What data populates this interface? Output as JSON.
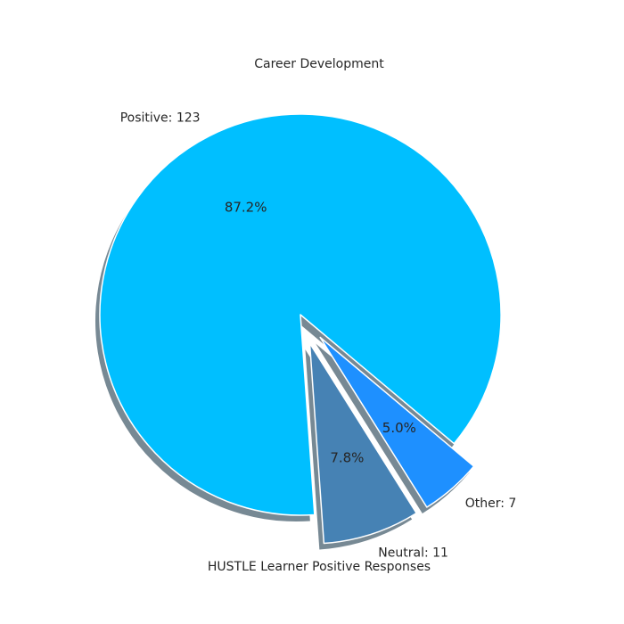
{
  "chart_data": {
    "type": "pie",
    "title": "Career Development",
    "xlabel": "HUSTLE Learner Positive Responses",
    "slices": [
      {
        "label": "Positive: 123",
        "value": 123,
        "pct_label": "87.2%",
        "color": "#00bfff"
      },
      {
        "label": "Neutral: 11",
        "value": 11,
        "pct_label": "7.8%",
        "color": "#4682b4"
      },
      {
        "label": "Other: 7",
        "value": 7,
        "pct_label": "5.0%",
        "color": "#1e90ff"
      }
    ],
    "shadow": true,
    "legend": "none"
  }
}
